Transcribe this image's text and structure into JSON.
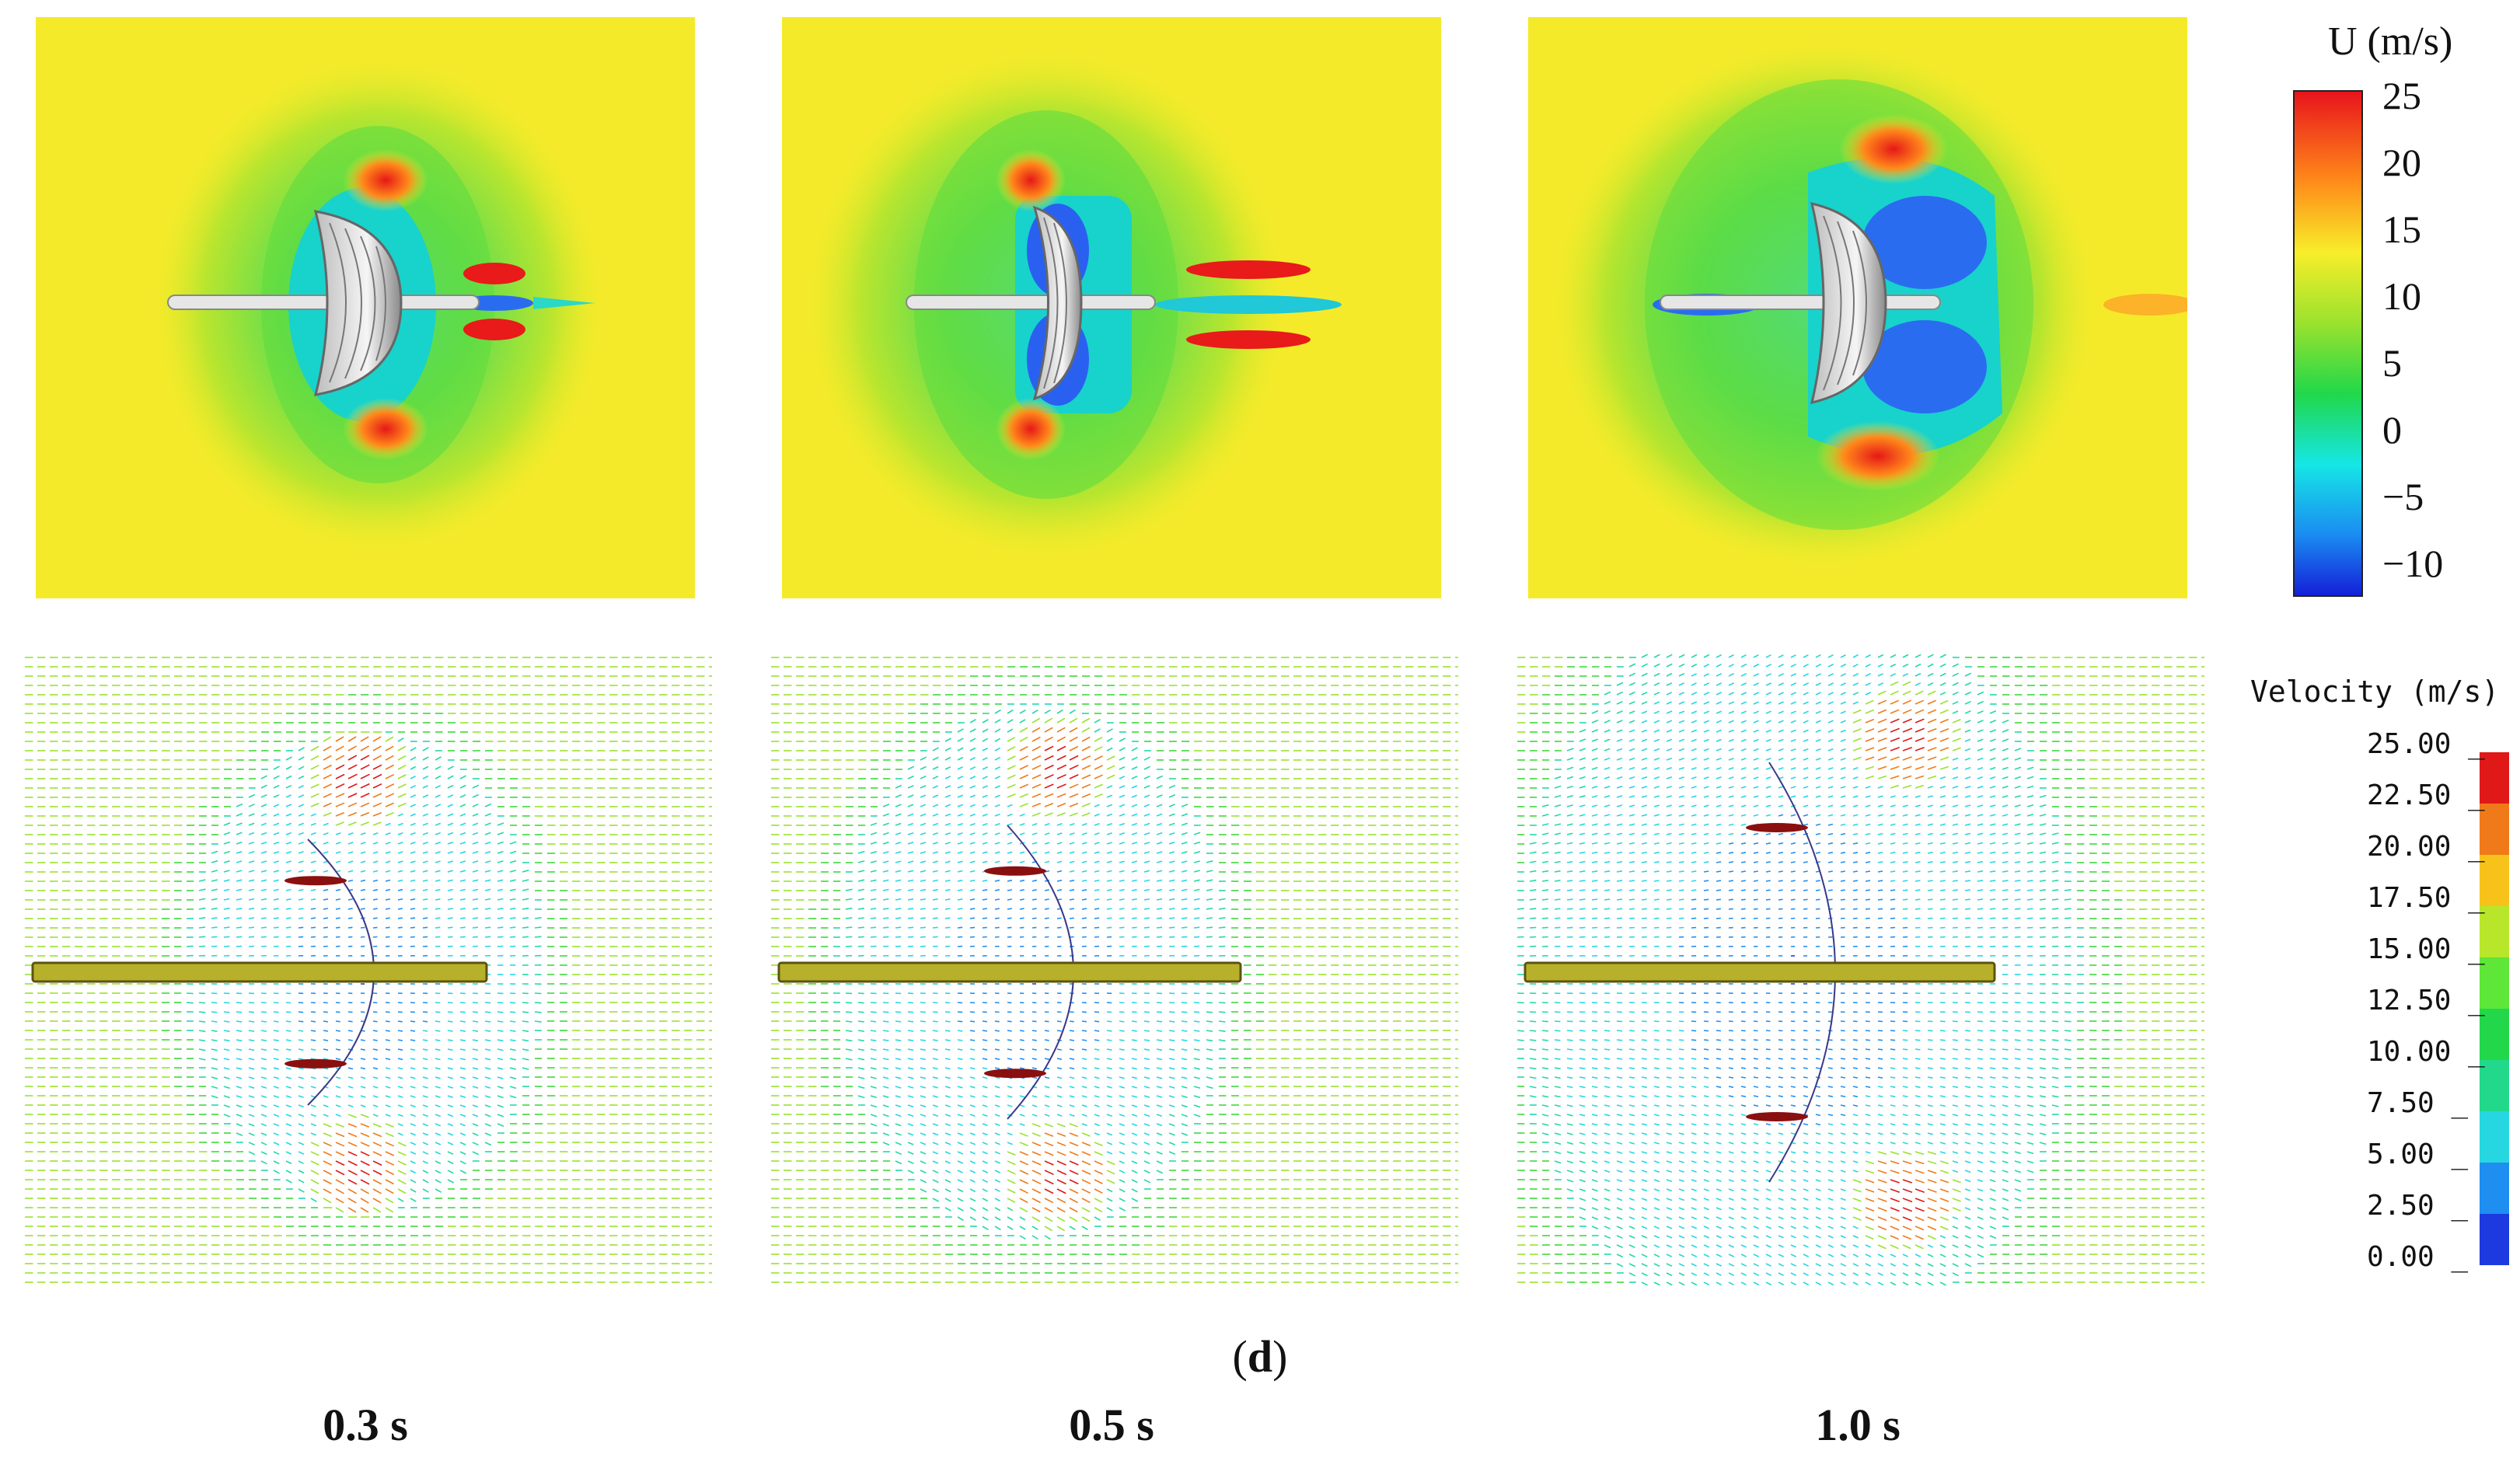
{
  "figure": {
    "subfigure_label": "d",
    "time_labels": [
      "0.3 s",
      "0.5 s",
      "1.0 s"
    ]
  },
  "contour_colorbar": {
    "title": "U (m/s)",
    "ticks": [
      "25",
      "20",
      "15",
      "10",
      "5",
      "0",
      "−5",
      "−10"
    ],
    "range": [
      -12,
      25
    ],
    "colors": [
      "#e8141c",
      "#ff8c1a",
      "#f7ee2a",
      "#9ae22e",
      "#20d84a",
      "#16e6e6",
      "#1a8cf2",
      "#1420d8"
    ]
  },
  "vector_legend": {
    "title": "Velocity (m/s)",
    "ticks": [
      "25.00",
      "22.50",
      "20.00",
      "17.50",
      "15.00",
      "12.50",
      "10.00",
      "7.50",
      "5.00",
      "2.50",
      "0.00"
    ],
    "band_colors": [
      "#e01818",
      "#f07a1a",
      "#f7c21a",
      "#b8e62a",
      "#5ee638",
      "#22d84a",
      "#22d88a",
      "#26d6e0",
      "#1e8ef0",
      "#1c3ae0"
    ]
  },
  "panels": [
    {
      "name": "contour-0.3s",
      "time": "0.3 s",
      "wake": "small"
    },
    {
      "name": "contour-0.5s",
      "time": "0.5 s",
      "wake": "medium"
    },
    {
      "name": "contour-1.0s",
      "time": "1.0 s",
      "wake": "large"
    }
  ]
}
